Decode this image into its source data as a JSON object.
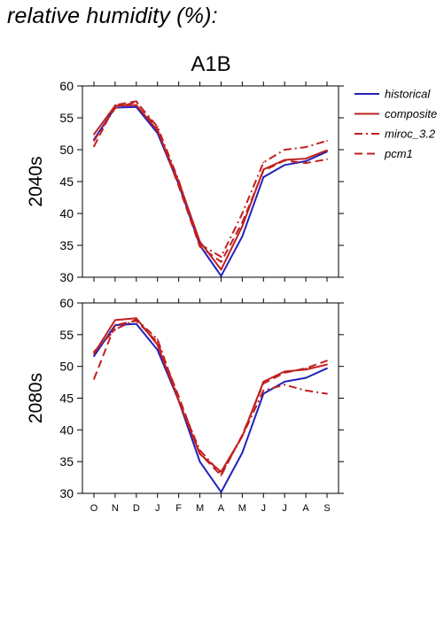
{
  "heading": "relative humidity (%):",
  "chart_data": {
    "type": "line",
    "title": "A1B",
    "months": [
      "O",
      "N",
      "D",
      "J",
      "F",
      "M",
      "A",
      "M",
      "J",
      "J",
      "A",
      "S"
    ],
    "ylim": [
      30,
      60
    ],
    "yticks": [
      30,
      35,
      40,
      45,
      50,
      55,
      60
    ],
    "legend_position": "top-right",
    "series_styles": [
      {
        "name": "historical",
        "color": "#2222bb",
        "dash": "solid"
      },
      {
        "name": "composite",
        "color": "#c02020",
        "dash": "solid"
      },
      {
        "name": "miroc_3.2",
        "color": "#c02020",
        "dash": "dash-dot"
      },
      {
        "name": "pcm1",
        "color": "#c02020",
        "dash": "dashed"
      }
    ],
    "panels": [
      {
        "label": "2040s",
        "series": [
          {
            "name": "historical",
            "values": [
              51.6,
              56.6,
              56.7,
              52.6,
              44.6,
              35.0,
              30.2,
              36.4,
              45.7,
              47.6,
              48.2,
              49.7
            ]
          },
          {
            "name": "composite",
            "values": [
              52.4,
              56.9,
              57.0,
              53.0,
              45.0,
              35.6,
              31.2,
              38.0,
              46.9,
              48.4,
              48.6,
              49.9
            ]
          },
          {
            "name": "miroc_3.2",
            "values": [
              51.4,
              56.5,
              57.5,
              53.6,
              45.2,
              35.2,
              33.2,
              40.0,
              48.0,
              50.0,
              50.4,
              51.4
            ]
          },
          {
            "name": "pcm1",
            "values": [
              50.5,
              57.0,
              57.6,
              53.2,
              44.3,
              34.8,
              32.4,
              38.6,
              46.7,
              48.3,
              47.9,
              48.5
            ]
          }
        ]
      },
      {
        "label": "2080s",
        "series": [
          {
            "name": "historical",
            "values": [
              51.6,
              56.5,
              56.7,
              52.6,
              44.6,
              35.0,
              30.2,
              36.4,
              45.7,
              47.6,
              48.2,
              49.7
            ]
          },
          {
            "name": "composite",
            "values": [
              52.0,
              57.3,
              57.6,
              53.4,
              44.6,
              36.2,
              33.4,
              39.0,
              47.6,
              49.2,
              49.5,
              50.3
            ]
          },
          {
            "name": "miroc_3.2",
            "values": [
              52.3,
              55.8,
              57.4,
              54.3,
              44.8,
              36.8,
              33.1,
              39.0,
              46.2,
              47.1,
              46.2,
              45.7
            ]
          },
          {
            "name": "pcm1",
            "values": [
              48.0,
              56.5,
              57.2,
              53.8,
              45.3,
              36.3,
              32.8,
              39.2,
              47.3,
              49.0,
              49.7,
              50.9
            ]
          }
        ]
      }
    ]
  }
}
